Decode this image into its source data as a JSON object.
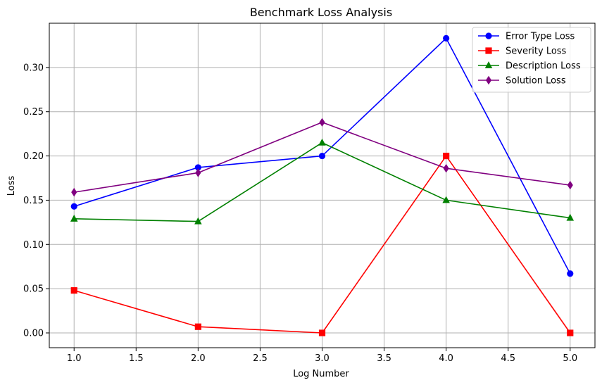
{
  "chart_data": {
    "type": "line",
    "title": "Benchmark Loss Analysis",
    "xlabel": "Log Number",
    "ylabel": "Loss",
    "x": [
      1,
      2,
      3,
      4,
      5
    ],
    "xlim": [
      0.8,
      5.2
    ],
    "ylim": [
      -0.0167,
      0.35
    ],
    "xticks": [
      1.0,
      1.5,
      2.0,
      2.5,
      3.0,
      3.5,
      4.0,
      4.5,
      5.0
    ],
    "xtick_labels": [
      "1.0",
      "1.5",
      "2.0",
      "2.5",
      "3.0",
      "3.5",
      "4.0",
      "4.5",
      "5.0"
    ],
    "yticks": [
      0.0,
      0.05,
      0.1,
      0.15,
      0.2,
      0.25,
      0.3
    ],
    "ytick_labels": [
      "0.00",
      "0.05",
      "0.10",
      "0.15",
      "0.20",
      "0.25",
      "0.30"
    ],
    "grid": true,
    "legend_position": "top-right",
    "series": [
      {
        "name": "Error Type Loss",
        "color": "#0000ff",
        "marker": "circle",
        "values": [
          0.143,
          0.187,
          0.2,
          0.333,
          0.067
        ]
      },
      {
        "name": "Severity Loss",
        "color": "#ff0000",
        "marker": "square",
        "values": [
          0.048,
          0.007,
          0.0,
          0.2,
          0.0
        ]
      },
      {
        "name": "Description Loss",
        "color": "#008000",
        "marker": "triangle",
        "values": [
          0.129,
          0.126,
          0.215,
          0.15,
          0.13
        ]
      },
      {
        "name": "Solution Loss",
        "color": "#800080",
        "marker": "diamond",
        "values": [
          0.159,
          0.181,
          0.238,
          0.186,
          0.167
        ]
      }
    ]
  }
}
